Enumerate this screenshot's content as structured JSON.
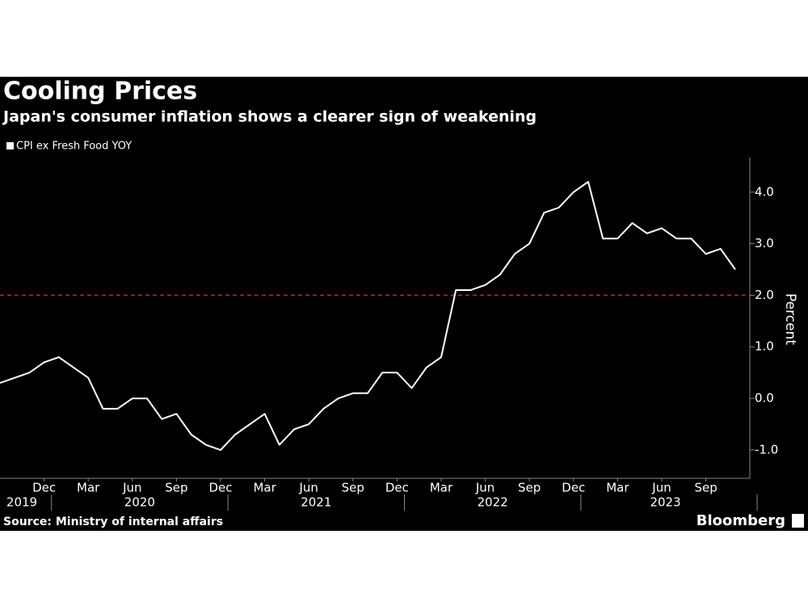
{
  "chart_data": {
    "type": "line",
    "title": "Cooling Prices",
    "subtitle": "Japan's consumer inflation shows a clearer sign of weakening",
    "y_label": "Percent",
    "source": "Source: Ministry of internal affairs",
    "brand": "Bloomberg",
    "x": [
      "2019-09",
      "2019-10",
      "2019-11",
      "2019-12",
      "2020-01",
      "2020-02",
      "2020-03",
      "2020-04",
      "2020-05",
      "2020-06",
      "2020-07",
      "2020-08",
      "2020-09",
      "2020-10",
      "2020-11",
      "2020-12",
      "2021-01",
      "2021-02",
      "2021-03",
      "2021-04",
      "2021-05",
      "2021-06",
      "2021-07",
      "2021-08",
      "2021-09",
      "2021-10",
      "2021-11",
      "2021-12",
      "2022-01",
      "2022-02",
      "2022-03",
      "2022-04",
      "2022-05",
      "2022-06",
      "2022-07",
      "2022-08",
      "2022-09",
      "2022-10",
      "2022-11",
      "2022-12",
      "2023-01",
      "2023-02",
      "2023-03",
      "2023-04",
      "2023-05",
      "2023-06",
      "2023-07",
      "2023-08",
      "2023-09",
      "2023-10",
      "2023-11"
    ],
    "series": [
      {
        "name": "CPI ex Fresh Food YOY",
        "color": "#ffffff",
        "values": [
          0.3,
          0.4,
          0.5,
          0.7,
          0.8,
          0.6,
          0.4,
          -0.2,
          -0.2,
          0.0,
          0.0,
          -0.4,
          -0.3,
          -0.7,
          -0.9,
          -1.0,
          -0.7,
          -0.5,
          -0.3,
          -0.9,
          -0.6,
          -0.5,
          -0.2,
          0.0,
          0.1,
          0.1,
          0.5,
          0.5,
          0.2,
          0.6,
          0.8,
          2.1,
          2.1,
          2.2,
          2.4,
          2.8,
          3.0,
          3.6,
          3.7,
          4.0,
          4.2,
          3.1,
          3.1,
          3.4,
          3.2,
          3.3,
          3.1,
          3.1,
          2.8,
          2.9,
          2.5
        ]
      }
    ],
    "ylim": [
      -1.55,
      4.67
    ],
    "yticks": [
      {
        "value": -1,
        "label": "-1.0"
      },
      {
        "value": 0,
        "label": "0.0"
      },
      {
        "value": 1,
        "label": "1.0"
      },
      {
        "value": 2,
        "label": "2.0"
      },
      {
        "value": 3,
        "label": "3.0"
      },
      {
        "value": 4,
        "label": "4.0"
      }
    ],
    "xticks": [
      {
        "value": "2019-12",
        "label": "Dec"
      },
      {
        "value": "2020-03",
        "label": "Mar"
      },
      {
        "value": "2020-06",
        "label": "Jun"
      },
      {
        "value": "2020-09",
        "label": "Sep"
      },
      {
        "value": "2020-12",
        "label": "Dec"
      },
      {
        "value": "2021-03",
        "label": "Mar"
      },
      {
        "value": "2021-06",
        "label": "Jun"
      },
      {
        "value": "2021-09",
        "label": "Sep"
      },
      {
        "value": "2021-12",
        "label": "Dec"
      },
      {
        "value": "2022-03",
        "label": "Mar"
      },
      {
        "value": "2022-06",
        "label": "Jun"
      },
      {
        "value": "2022-09",
        "label": "Sep"
      },
      {
        "value": "2022-12",
        "label": "Dec"
      },
      {
        "value": "2023-03",
        "label": "Mar"
      },
      {
        "value": "2023-06",
        "label": "Jun"
      },
      {
        "value": "2023-09",
        "label": "Sep"
      }
    ],
    "year_labels": [
      "2019",
      "2020",
      "2021",
      "2022",
      "2023"
    ],
    "reference_line": {
      "value": 2,
      "color": "#c0273a"
    },
    "grid": false
  }
}
